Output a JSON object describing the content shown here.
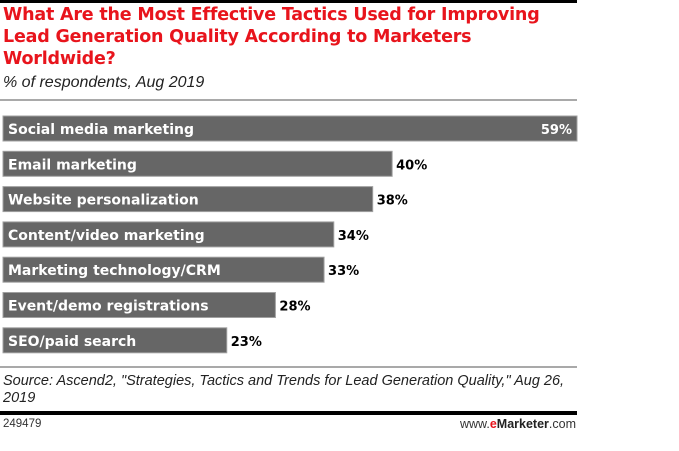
{
  "title": "What Are the Most Effective Tactics Used for Improving Lead Generation Quality According to Marketers Worldwide?",
  "subtitle": "% of respondents, Aug 2019",
  "source": "Source: Ascend2, \"Strategies, Tactics and Trends for Lead Generation Quality,\" Aug 26, 2019",
  "chart_id": "249479",
  "brand": {
    "prefix": "www.",
    "e": "e",
    "name": "Marketer",
    "suffix": ".com"
  },
  "colors": {
    "title": "#e8141c",
    "bar": "#666666",
    "bar_border": "#a0a0a0"
  },
  "chart_data": {
    "type": "bar",
    "orientation": "horizontal",
    "title": "What Are the Most Effective Tactics Used for Improving Lead Generation Quality According to Marketers Worldwide?",
    "subtitle": "% of respondents, Aug 2019",
    "xlabel": "",
    "ylabel": "",
    "unit": "%",
    "xlim": [
      0,
      59
    ],
    "grid": false,
    "legend": "none",
    "categories": [
      "Social media marketing",
      "Email marketing",
      "Website personalization",
      "Content/video marketing",
      "Marketing technology/CRM",
      "Event/demo registrations",
      "SEO/paid search"
    ],
    "values": [
      59,
      40,
      38,
      34,
      33,
      28,
      23
    ],
    "value_labels": [
      "59%",
      "40%",
      "38%",
      "34%",
      "33%",
      "28%",
      "23%"
    ]
  }
}
